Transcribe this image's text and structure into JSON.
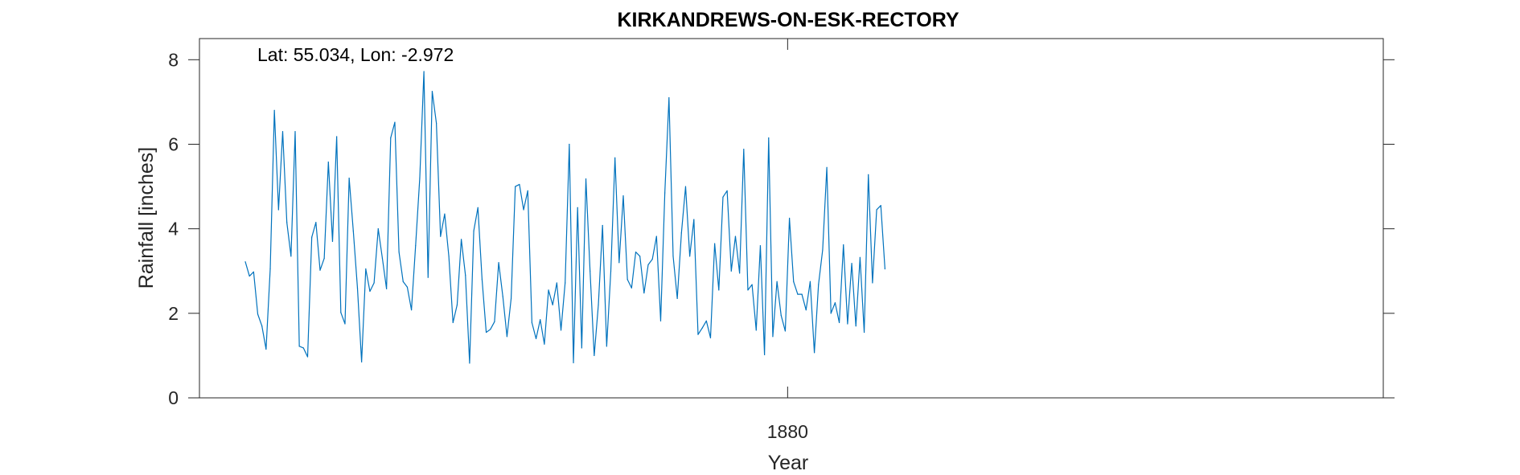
{
  "chart_data": {
    "type": "line",
    "title": "KIRKANDREWS-ON-ESK-RECTORY",
    "annotation": "Lat: 55.034, Lon: -2.972",
    "xlabel": "Year",
    "ylabel": "Rainfall [inches]",
    "x_ticks": [
      {
        "value": 1880,
        "label": "1880"
      }
    ],
    "y_ticks": [
      {
        "value": 0,
        "label": "0"
      },
      {
        "value": 2,
        "label": "2"
      },
      {
        "value": 4,
        "label": "4"
      },
      {
        "value": 6,
        "label": "6"
      },
      {
        "value": 8,
        "label": "8"
      }
    ],
    "ylim": [
      0,
      8.5
    ],
    "xlim": [
      1868.2,
      1891.95
    ],
    "x_start": 1869.12,
    "x_step": 0.08333,
    "grid": false,
    "series": [
      {
        "name": "Rainfall",
        "color": "#0072BD",
        "values": [
          3.22,
          2.88,
          2.98,
          1.98,
          1.7,
          1.15,
          3.05,
          6.8,
          4.45,
          6.3,
          4.15,
          3.35,
          6.3,
          1.22,
          1.18,
          0.97,
          3.8,
          4.15,
          3.02,
          3.3,
          5.58,
          3.7,
          6.18,
          2.02,
          1.75,
          5.2,
          3.95,
          2.6,
          0.85,
          3.05,
          2.52,
          2.72,
          4.0,
          3.3,
          2.58,
          6.15,
          6.52,
          3.45,
          2.75,
          2.62,
          2.08,
          3.6,
          5.2,
          7.72,
          2.85,
          7.25,
          6.5,
          3.82,
          4.35,
          3.35,
          1.78,
          2.2,
          3.75,
          2.9,
          0.82,
          3.95,
          4.5,
          2.8,
          1.55,
          1.62,
          1.8,
          3.2,
          2.4,
          1.45,
          2.35,
          5.0,
          5.05,
          4.45,
          4.9,
          1.78,
          1.4,
          1.85,
          1.27,
          2.55,
          2.2,
          2.72,
          1.6,
          2.72,
          6.0,
          0.83,
          4.5,
          1.18,
          5.18,
          3.0,
          1.0,
          2.2,
          4.08,
          1.22,
          3.0,
          5.68,
          3.2,
          4.78,
          2.8,
          2.6,
          3.45,
          3.35,
          2.48,
          3.15,
          3.28,
          3.82,
          1.82,
          4.85,
          7.1,
          3.35,
          2.35,
          3.9,
          5.0,
          3.35,
          4.22,
          1.5,
          1.65,
          1.82,
          1.42,
          3.65,
          2.55,
          4.75,
          4.9,
          3.0,
          3.82,
          2.95,
          5.88,
          2.55,
          2.68,
          1.6,
          3.6,
          1.02,
          6.15,
          1.45,
          2.75,
          1.95,
          1.58,
          4.25,
          2.75,
          2.45,
          2.45,
          2.08,
          2.75,
          1.07,
          2.68,
          3.5,
          5.45,
          2.0,
          2.25,
          1.78,
          3.62,
          1.75,
          3.18,
          1.7,
          3.32,
          1.55,
          5.28,
          2.72,
          4.45,
          4.55,
          3.05
        ]
      }
    ]
  }
}
